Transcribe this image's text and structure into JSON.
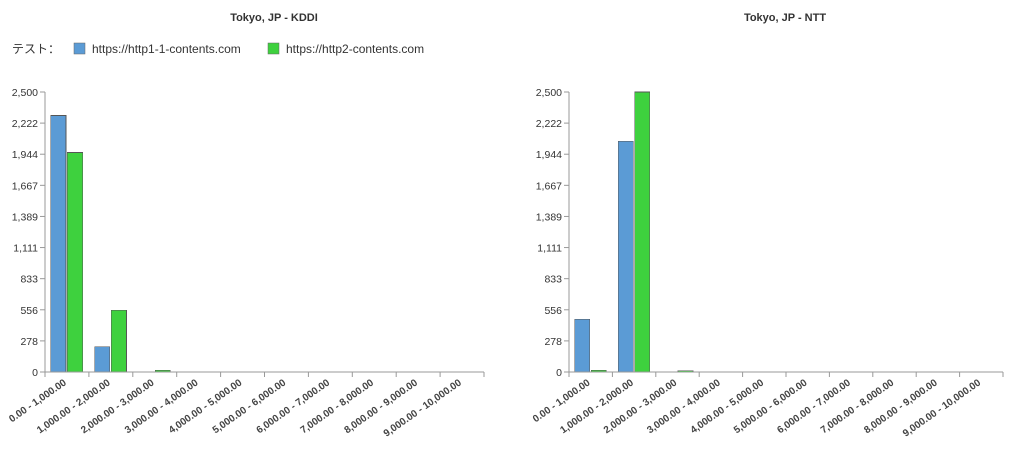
{
  "legend": {
    "label": "テスト：",
    "items": [
      {
        "name": "https://http1-1-contents.com",
        "color": "#5b9bd5"
      },
      {
        "name": "https://http2-contents.com",
        "color": "#3ed13e"
      }
    ]
  },
  "chart_data": [
    {
      "type": "bar",
      "title": "Tokyo, JP - KDDI",
      "categories": [
        "0.00 - 1,000.00",
        "1,000.00 - 2,000.00",
        "2,000.00 - 3,000.00",
        "3,000.00 - 4,000.00",
        "4,000.00 - 5,000.00",
        "5,000.00 - 6,000.00",
        "6,000.00 - 7,000.00",
        "7,000.00 - 8,000.00",
        "8,000.00 - 9,000.00",
        "9,000.00 - 10,000.00"
      ],
      "series": [
        {
          "name": "https://http1-1-contents.com",
          "values": [
            2290,
            225,
            0,
            0,
            0,
            2,
            0,
            0,
            0,
            0
          ]
        },
        {
          "name": "https://http2-contents.com",
          "values": [
            1960,
            550,
            15,
            0,
            0,
            0,
            0,
            0,
            0,
            0
          ]
        }
      ],
      "ylim": [
        0,
        2500
      ],
      "yticks": [
        "0",
        "278",
        "556",
        "833",
        "1,111",
        "1,389",
        "1,667",
        "1,944",
        "2,222",
        "2,500"
      ],
      "xlabel": "",
      "ylabel": "",
      "grid": false,
      "legend_position": "top-left"
    },
    {
      "type": "bar",
      "title": "Tokyo, JP - NTT",
      "categories": [
        "0.00 - 1,000.00",
        "1,000.00 - 2,000.00",
        "2,000.00 - 3,000.00",
        "3,000.00 - 4,000.00",
        "4,000.00 - 5,000.00",
        "5,000.00 - 6,000.00",
        "6,000.00 - 7,000.00",
        "7,000.00 - 8,000.00",
        "8,000.00 - 9,000.00",
        "9,000.00 - 10,000.00"
      ],
      "series": [
        {
          "name": "https://http1-1-contents.com",
          "values": [
            470,
            2060,
            0,
            0,
            0,
            0,
            0,
            0,
            0,
            0
          ]
        },
        {
          "name": "https://http2-contents.com",
          "values": [
            15,
            2500,
            12,
            0,
            0,
            2,
            2,
            0,
            0,
            0
          ]
        }
      ],
      "ylim": [
        0,
        2500
      ],
      "yticks": [
        "0",
        "278",
        "556",
        "833",
        "1,111",
        "1,389",
        "1,667",
        "1,944",
        "2,222",
        "2,500"
      ],
      "xlabel": "",
      "ylabel": "",
      "grid": false
    }
  ]
}
